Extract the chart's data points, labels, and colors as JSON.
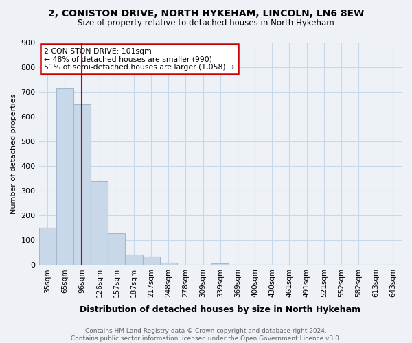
{
  "title": "2, CONISTON DRIVE, NORTH HYKEHAM, LINCOLN, LN6 8EW",
  "subtitle": "Size of property relative to detached houses in North Hykeham",
  "xlabel": "Distribution of detached houses by size in North Hykeham",
  "ylabel": "Number of detached properties",
  "footer_line1": "Contains HM Land Registry data © Crown copyright and database right 2024.",
  "footer_line2": "Contains public sector information licensed under the Open Government Licence v3.0.",
  "bins": [
    "35sqm",
    "65sqm",
    "96sqm",
    "126sqm",
    "157sqm",
    "187sqm",
    "217sqm",
    "248sqm",
    "278sqm",
    "309sqm",
    "339sqm",
    "369sqm",
    "400sqm",
    "430sqm",
    "461sqm",
    "491sqm",
    "521sqm",
    "552sqm",
    "582sqm",
    "613sqm",
    "643sqm"
  ],
  "values": [
    150,
    712,
    650,
    340,
    128,
    42,
    35,
    10,
    0,
    0,
    8,
    0,
    0,
    0,
    0,
    0,
    0,
    0,
    0,
    0,
    0
  ],
  "bar_color": "#c8d8e8",
  "bar_edge_color": "#a0b8d0",
  "property_line_x": 2,
  "property_line_color": "#cc0000",
  "annotation_text": "2 CONISTON DRIVE: 101sqm\n← 48% of detached houses are smaller (990)\n51% of semi-detached houses are larger (1,058) →",
  "annotation_box_color": "#ffffff",
  "annotation_box_edge_color": "#cc0000",
  "ylim": [
    0,
    900
  ],
  "yticks": [
    0,
    100,
    200,
    300,
    400,
    500,
    600,
    700,
    800,
    900
  ],
  "grid_color": "#c8d8e8",
  "bg_color": "#eef2f7",
  "plot_bg_color": "#eef2f7"
}
